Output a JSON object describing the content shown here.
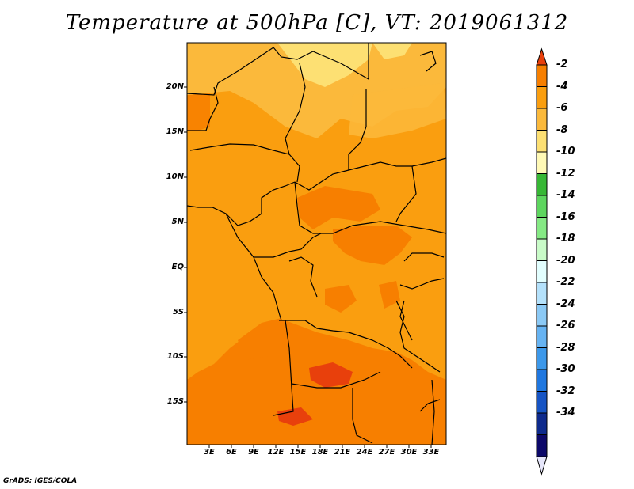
{
  "title": "Temperature at 500hPa [C], VT: 2019061312",
  "credit": "GrADS: IGES/COLA",
  "map": {
    "lat_labels": [
      "20N",
      "15N",
      "10N",
      "5N",
      "EQ",
      "5S",
      "10S",
      "15S"
    ],
    "lon_labels": [
      "3E",
      "6E",
      "9E",
      "12E",
      "15E",
      "18E",
      "21E",
      "24E",
      "27E",
      "30E",
      "33E"
    ]
  },
  "colorbar": {
    "labels": [
      "-2",
      "-4",
      "-6",
      "-8",
      "-10",
      "-12",
      "-14",
      "-16",
      "-18",
      "-20",
      "-22",
      "-24",
      "-26",
      "-28",
      "-30",
      "-32",
      "-34"
    ],
    "colors": [
      "#e8400c",
      "#f77f00",
      "#fa9e0f",
      "#fbb93b",
      "#fde073",
      "#fff9b6",
      "#37b735",
      "#5dd55e",
      "#85e984",
      "#c9fbc8",
      "#e2fefe",
      "#b4e1fb",
      "#8bc9f5",
      "#66b3f2",
      "#3c98ea",
      "#1f77e0",
      "#1654c4",
      "#0e2a8c",
      "#0c0869",
      "#e6e6fa"
    ]
  }
}
